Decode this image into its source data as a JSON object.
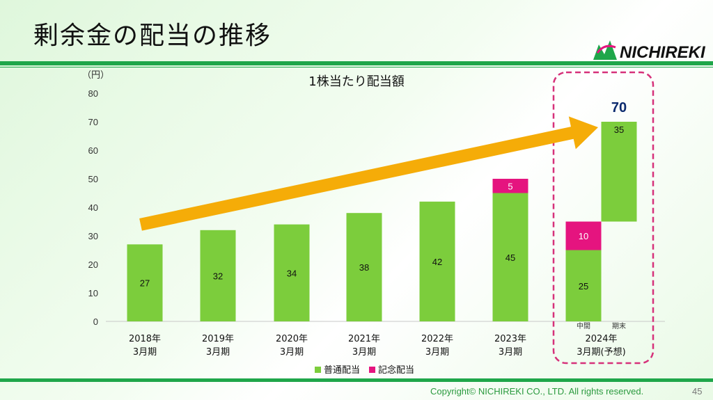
{
  "slide": {
    "title": "剰余金の配当の推移",
    "copyright": "Copyright© NICHIREKI CO., LTD. All rights reserved.",
    "page_number": "45",
    "logo_text": "NICHIREKI"
  },
  "colors": {
    "regular": "#7ccd3c",
    "commemorative": "#e5147f",
    "arrow": "#f5ac08",
    "highlight_box": "#d6317a",
    "rule": "#1fa64a",
    "total_label": "#0b2a6e"
  },
  "chart_data": {
    "type": "bar",
    "stacked": true,
    "title": "1株当たり配当額",
    "unit_label": "（円）",
    "ylim": [
      0,
      80
    ],
    "yticks": [
      0,
      10,
      20,
      30,
      40,
      50,
      60,
      70,
      80
    ],
    "grid": false,
    "legend_position": "bottom",
    "categories": [
      [
        "2018年",
        "3月期"
      ],
      [
        "2019年",
        "3月期"
      ],
      [
        "2020年",
        "3月期"
      ],
      [
        "2021年",
        "3月期"
      ],
      [
        "2022年",
        "3月期"
      ],
      [
        "2023年",
        "3月期"
      ],
      [
        "2024年",
        "3月期(予想)"
      ]
    ],
    "legend": [
      {
        "name": "普通配当",
        "color": "#7ccd3c"
      },
      {
        "name": "記念配当",
        "color": "#e5147f"
      }
    ],
    "bars": [
      {
        "category": 0,
        "segments": [
          {
            "series": 0,
            "value": 27
          }
        ]
      },
      {
        "category": 1,
        "segments": [
          {
            "series": 0,
            "value": 32
          }
        ]
      },
      {
        "category": 2,
        "segments": [
          {
            "series": 0,
            "value": 34
          }
        ]
      },
      {
        "category": 3,
        "segments": [
          {
            "series": 0,
            "value": 38
          }
        ]
      },
      {
        "category": 4,
        "segments": [
          {
            "series": 0,
            "value": 42
          }
        ]
      },
      {
        "category": 5,
        "segments": [
          {
            "series": 0,
            "value": 45
          },
          {
            "series": 1,
            "value": 5
          }
        ]
      },
      {
        "category": 6,
        "sub_label": "中間",
        "segments": [
          {
            "series": 0,
            "value": 25
          },
          {
            "series": 1,
            "value": 10
          }
        ]
      },
      {
        "category": 6,
        "sub_label": "期末",
        "base": 35,
        "segments": [
          {
            "series": 0,
            "value": 35
          }
        ]
      }
    ],
    "annotations": {
      "total_value": "70",
      "trend_arrow": {
        "from_category": 0,
        "from_value": 32,
        "to_category": 6,
        "to_value": 70
      },
      "highlight_category": 6
    }
  }
}
